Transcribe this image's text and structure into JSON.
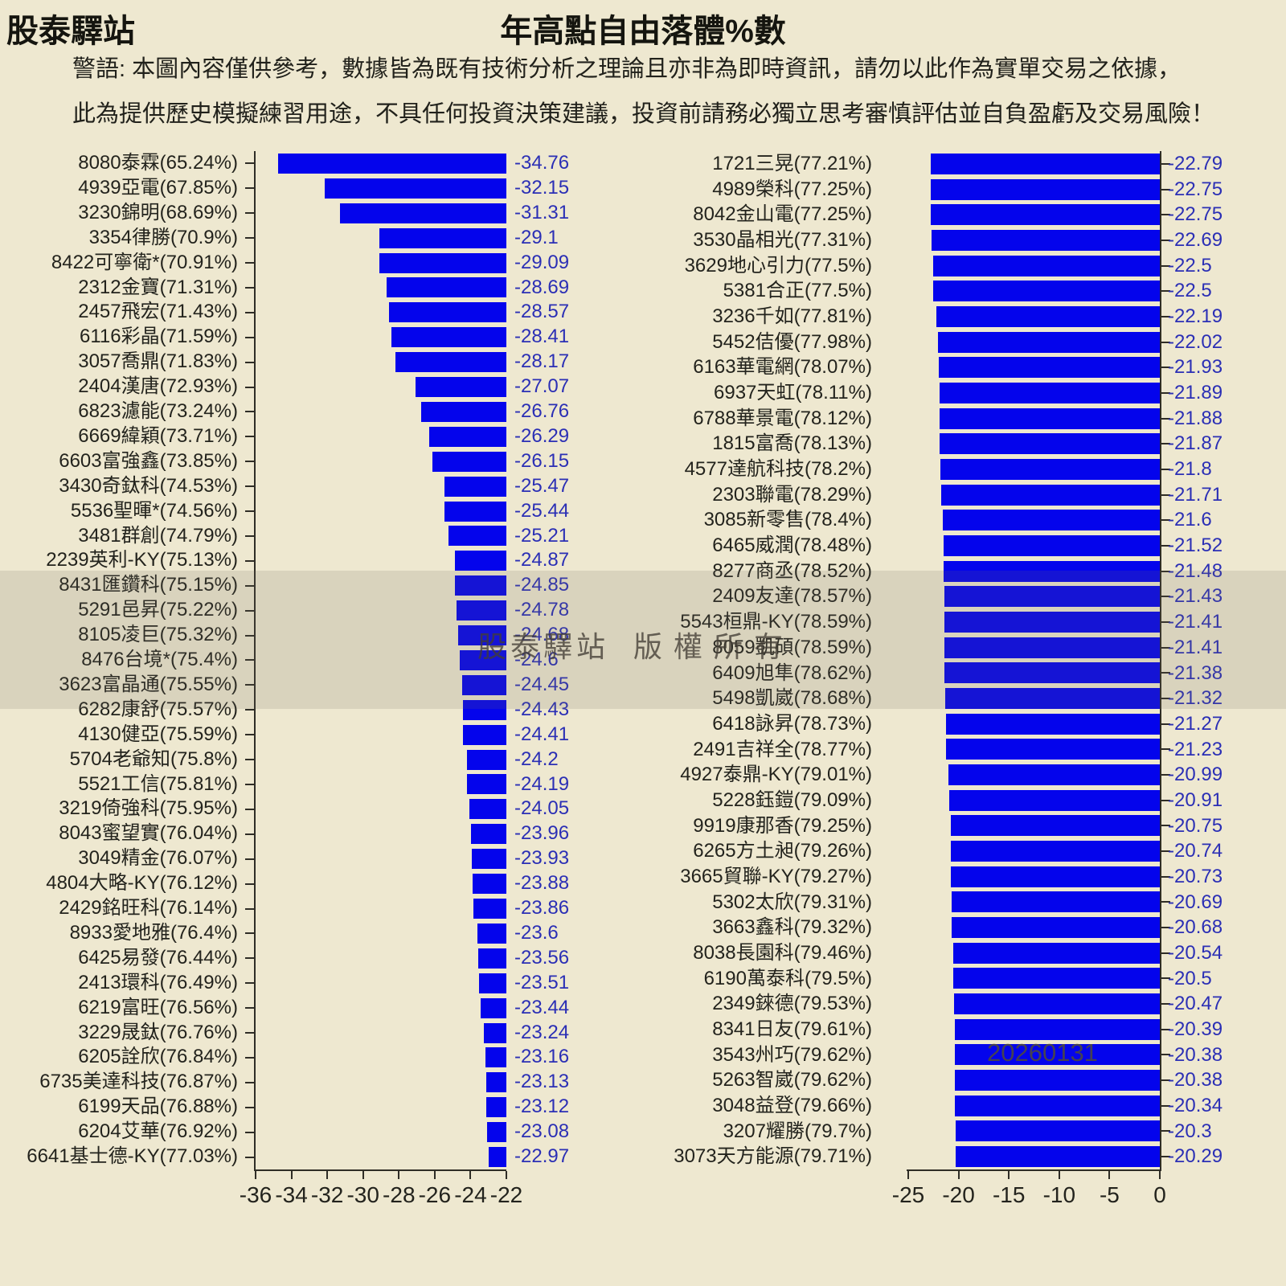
{
  "header": {
    "brand": "股泰驛站",
    "title": "年高點自由落體%數",
    "warning_line1": "警語: 本圖內容僅供參考，數據皆為既有技術分析之理論且亦非為即時資訊，請勿以此作為實單交易之依據，",
    "warning_line2": "此為提供歷史模擬練習用途，不具任何投資決策建議，投資前請務必獨立思考審慎評估並自負盈虧及交易風險！"
  },
  "watermark": {
    "band_text_left": "股泰驛站",
    "band_text_right": "版權所有",
    "date_text": "20260131"
  },
  "colors": {
    "background": "#EEE8D0",
    "bar": "#0404EC",
    "value_text": "#2B2FB5",
    "label_text": "#23231d",
    "axis": "#2f2d26"
  },
  "chart_data": [
    {
      "type": "bar",
      "panel": "left",
      "orientation": "horizontal",
      "title": "年高點自由落體%數",
      "xlabel": "",
      "ylabel": "",
      "xlim": [
        -36,
        -22
      ],
      "xticks": [
        -36,
        -34,
        -32,
        -30,
        -28,
        -26,
        -24,
        -22
      ],
      "grid": false,
      "bars_extend_to": -22,
      "bars": [
        {
          "label": "8080泰霖(65.24%)",
          "value": -34.76
        },
        {
          "label": "4939亞電(67.85%)",
          "value": -32.15
        },
        {
          "label": "3230錦明(68.69%)",
          "value": -31.31
        },
        {
          "label": "3354律勝(70.9%)",
          "value": -29.1
        },
        {
          "label": "8422可寧衛*(70.91%)",
          "value": -29.09
        },
        {
          "label": "2312金寶(71.31%)",
          "value": -28.69
        },
        {
          "label": "2457飛宏(71.43%)",
          "value": -28.57
        },
        {
          "label": "6116彩晶(71.59%)",
          "value": -28.41
        },
        {
          "label": "3057喬鼎(71.83%)",
          "value": -28.17
        },
        {
          "label": "2404漢唐(72.93%)",
          "value": -27.07
        },
        {
          "label": "6823濾能(73.24%)",
          "value": -26.76
        },
        {
          "label": "6669緯穎(73.71%)",
          "value": -26.29
        },
        {
          "label": "6603富強鑫(73.85%)",
          "value": -26.15
        },
        {
          "label": "3430奇鈦科(74.53%)",
          "value": -25.47
        },
        {
          "label": "5536聖暉*(74.56%)",
          "value": -25.44
        },
        {
          "label": "3481群創(74.79%)",
          "value": -25.21
        },
        {
          "label": "2239英利-KY(75.13%)",
          "value": -24.87
        },
        {
          "label": "8431匯鑽科(75.15%)",
          "value": -24.85
        },
        {
          "label": "5291邑昇(75.22%)",
          "value": -24.78
        },
        {
          "label": "8105凌巨(75.32%)",
          "value": -24.68
        },
        {
          "label": "8476台境*(75.4%)",
          "value": -24.6
        },
        {
          "label": "3623富晶通(75.55%)",
          "value": -24.45
        },
        {
          "label": "6282康舒(75.57%)",
          "value": -24.43
        },
        {
          "label": "4130健亞(75.59%)",
          "value": -24.41
        },
        {
          "label": "5704老爺知(75.8%)",
          "value": -24.2
        },
        {
          "label": "5521工信(75.81%)",
          "value": -24.19
        },
        {
          "label": "3219倚強科(75.95%)",
          "value": -24.05
        },
        {
          "label": "8043蜜望實(76.04%)",
          "value": -23.96
        },
        {
          "label": "3049精金(76.07%)",
          "value": -23.93
        },
        {
          "label": "4804大略-KY(76.12%)",
          "value": -23.88
        },
        {
          "label": "2429銘旺科(76.14%)",
          "value": -23.86
        },
        {
          "label": "8933愛地雅(76.4%)",
          "value": -23.6
        },
        {
          "label": "6425易發(76.44%)",
          "value": -23.56
        },
        {
          "label": "2413環科(76.49%)",
          "value": -23.51
        },
        {
          "label": "6219富旺(76.56%)",
          "value": -23.44
        },
        {
          "label": "3229晟鈦(76.76%)",
          "value": -23.24
        },
        {
          "label": "6205詮欣(76.84%)",
          "value": -23.16
        },
        {
          "label": "6735美達科技(76.87%)",
          "value": -23.13
        },
        {
          "label": "6199天品(76.88%)",
          "value": -23.12
        },
        {
          "label": "6204艾華(76.92%)",
          "value": -23.08
        },
        {
          "label": "6641基士德-KY(77.03%)",
          "value": -22.97
        }
      ]
    },
    {
      "type": "bar",
      "panel": "right",
      "orientation": "horizontal",
      "title": "年高點自由落體%數",
      "xlabel": "",
      "ylabel": "",
      "xlim": [
        -25,
        0
      ],
      "xticks": [
        -25,
        -20,
        -15,
        -10,
        -5,
        0
      ],
      "grid": false,
      "bars_extend_to": 0,
      "bars": [
        {
          "label": "1721三晃(77.21%)",
          "value": -22.79
        },
        {
          "label": "4989榮科(77.25%)",
          "value": -22.75
        },
        {
          "label": "8042金山電(77.25%)",
          "value": -22.75
        },
        {
          "label": "3530晶相光(77.31%)",
          "value": -22.69
        },
        {
          "label": "3629地心引力(77.5%)",
          "value": -22.5
        },
        {
          "label": "5381合正(77.5%)",
          "value": -22.5
        },
        {
          "label": "3236千如(77.81%)",
          "value": -22.19
        },
        {
          "label": "5452佶優(77.98%)",
          "value": -22.02
        },
        {
          "label": "6163華電網(78.07%)",
          "value": -21.93
        },
        {
          "label": "6937天虹(78.11%)",
          "value": -21.89
        },
        {
          "label": "6788華景電(78.12%)",
          "value": -21.88
        },
        {
          "label": "1815富喬(78.13%)",
          "value": -21.87
        },
        {
          "label": "4577達航科技(78.2%)",
          "value": -21.8
        },
        {
          "label": "2303聯電(78.29%)",
          "value": -21.71
        },
        {
          "label": "3085新零售(78.4%)",
          "value": -21.6
        },
        {
          "label": "6465威潤(78.48%)",
          "value": -21.52
        },
        {
          "label": "8277商丞(78.52%)",
          "value": -21.48
        },
        {
          "label": "2409友達(78.57%)",
          "value": -21.43
        },
        {
          "label": "5543桓鼎-KY(78.59%)",
          "value": -21.41
        },
        {
          "label": "8059凱碩(78.59%)",
          "value": -21.41
        },
        {
          "label": "6409旭隼(78.62%)",
          "value": -21.38
        },
        {
          "label": "5498凱崴(78.68%)",
          "value": -21.32
        },
        {
          "label": "6418詠昇(78.73%)",
          "value": -21.27
        },
        {
          "label": "2491吉祥全(78.77%)",
          "value": -21.23
        },
        {
          "label": "4927泰鼎-KY(79.01%)",
          "value": -20.99
        },
        {
          "label": "5228鈺鎧(79.09%)",
          "value": -20.91
        },
        {
          "label": "9919康那香(79.25%)",
          "value": -20.75
        },
        {
          "label": "6265方土昶(79.26%)",
          "value": -20.74
        },
        {
          "label": "3665貿聯-KY(79.27%)",
          "value": -20.73
        },
        {
          "label": "5302太欣(79.31%)",
          "value": -20.69
        },
        {
          "label": "3663鑫科(79.32%)",
          "value": -20.68
        },
        {
          "label": "8038長園科(79.46%)",
          "value": -20.54
        },
        {
          "label": "6190萬泰科(79.5%)",
          "value": -20.5
        },
        {
          "label": "2349錸德(79.53%)",
          "value": -20.47
        },
        {
          "label": "8341日友(79.61%)",
          "value": -20.39
        },
        {
          "label": "3543州巧(79.62%)",
          "value": -20.38
        },
        {
          "label": "5263智崴(79.62%)",
          "value": -20.38
        },
        {
          "label": "3048益登(79.66%)",
          "value": -20.34
        },
        {
          "label": "3207耀勝(79.7%)",
          "value": -20.3
        },
        {
          "label": "3073天方能源(79.71%)",
          "value": -20.29
        }
      ]
    }
  ]
}
